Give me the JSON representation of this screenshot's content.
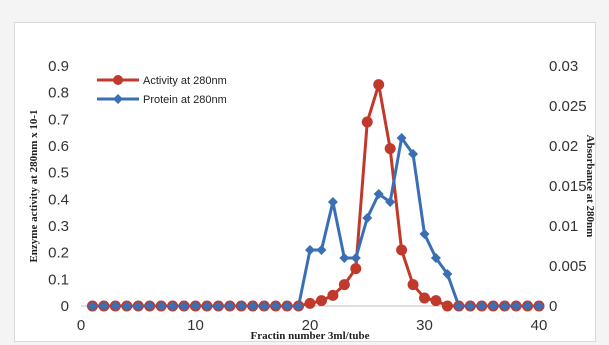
{
  "chart_data": {
    "type": "line",
    "xlabel": "Fractin number 3ml/tube",
    "ylabel": "Enzyme activity at 280nm x 10-1",
    "y2label": "Absorbance at 280nm",
    "xlim": [
      0,
      40
    ],
    "ylim": [
      0,
      0.9
    ],
    "y2lim": [
      0,
      0.03
    ],
    "x_ticks": [
      "0",
      "10",
      "20",
      "30",
      "40"
    ],
    "y_ticks": [
      "0",
      "0.1",
      "0.2",
      "0.3",
      "0.4",
      "0.5",
      "0.6",
      "0.7",
      "0.8",
      "0.9"
    ],
    "y2_ticks": [
      "0",
      "0.005",
      "0.01",
      "0.015",
      "0.02",
      "0.025",
      "0.03"
    ],
    "grid": false,
    "legend_position": "top-left",
    "x": [
      1,
      2,
      3,
      4,
      5,
      6,
      7,
      8,
      9,
      10,
      11,
      12,
      13,
      14,
      15,
      16,
      17,
      18,
      19,
      20,
      21,
      22,
      23,
      24,
      25,
      26,
      27,
      28,
      29,
      30,
      31,
      32,
      33,
      34,
      35,
      36,
      37,
      38,
      39,
      40
    ],
    "series": [
      {
        "name": "Activity at 280nm",
        "axis": "left",
        "color": "#c0392b",
        "marker": "circle",
        "values": [
          0,
          0,
          0,
          0,
          0,
          0,
          0,
          0,
          0,
          0,
          0,
          0,
          0,
          0,
          0,
          0,
          0,
          0,
          0,
          0.01,
          0.02,
          0.04,
          0.08,
          0.14,
          0.69,
          0.83,
          0.59,
          0.21,
          0.08,
          0.03,
          0.02,
          0,
          0,
          0,
          0,
          0,
          0,
          0,
          0,
          0
        ]
      },
      {
        "name": "Protein at 280nm",
        "axis": "right",
        "color": "#3a6fb5",
        "marker": "diamond",
        "values": [
          0,
          0,
          0,
          0,
          0,
          0,
          0,
          0,
          0,
          0,
          0,
          0,
          0,
          0,
          0,
          0,
          0,
          0,
          0,
          0.007,
          0.007,
          0.013,
          0.006,
          0.006,
          0.011,
          0.014,
          0.013,
          0.021,
          0.019,
          0.009,
          0.006,
          0.004,
          0,
          0,
          0,
          0,
          0,
          0,
          0,
          0
        ]
      }
    ]
  }
}
